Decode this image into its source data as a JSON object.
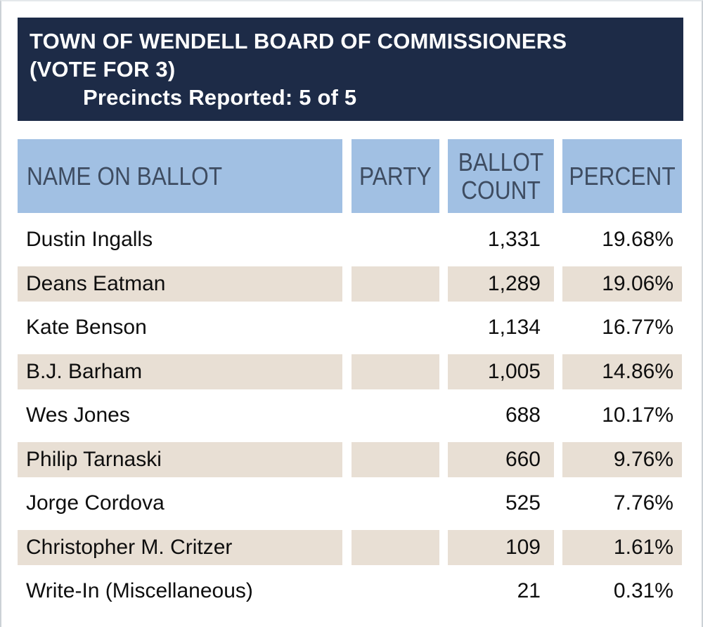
{
  "banner": {
    "title_line1": "TOWN OF WENDELL BOARD OF COMMISSIONERS",
    "title_line2": "(VOTE FOR 3)",
    "precincts_reported": "Precincts Reported: 5 of 5"
  },
  "table": {
    "columns": [
      "NAME ON BALLOT",
      "PARTY",
      "BALLOT COUNT",
      "PERCENT"
    ],
    "rows": [
      {
        "name": "Dustin Ingalls",
        "party": "",
        "count": "1,331",
        "percent": "19.68%"
      },
      {
        "name": "Deans Eatman",
        "party": "",
        "count": "1,289",
        "percent": "19.06%"
      },
      {
        "name": "Kate Benson",
        "party": "",
        "count": "1,134",
        "percent": "16.77%"
      },
      {
        "name": "B.J. Barham",
        "party": "",
        "count": "1,005",
        "percent": "14.86%"
      },
      {
        "name": "Wes Jones",
        "party": "",
        "count": "688",
        "percent": "10.17%"
      },
      {
        "name": "Philip Tarnaski",
        "party": "",
        "count": "660",
        "percent": "9.76%"
      },
      {
        "name": "Jorge Cordova",
        "party": "",
        "count": "525",
        "percent": "7.76%"
      },
      {
        "name": "Christopher M. Critzer",
        "party": "",
        "count": "109",
        "percent": "1.61%"
      },
      {
        "name": "Write-In (Miscellaneous)",
        "party": "",
        "count": "21",
        "percent": "0.31%"
      }
    ]
  },
  "colors": {
    "banner_bg": "#1d2b47",
    "banner_text": "#ffffff",
    "header_cell_bg": "#a1c0e3",
    "header_cell_text": "#3e4c61",
    "shaded_row_bg": "#e8dfd4",
    "row_text": "#0e0e0e",
    "page_bg": "#ffffff"
  }
}
